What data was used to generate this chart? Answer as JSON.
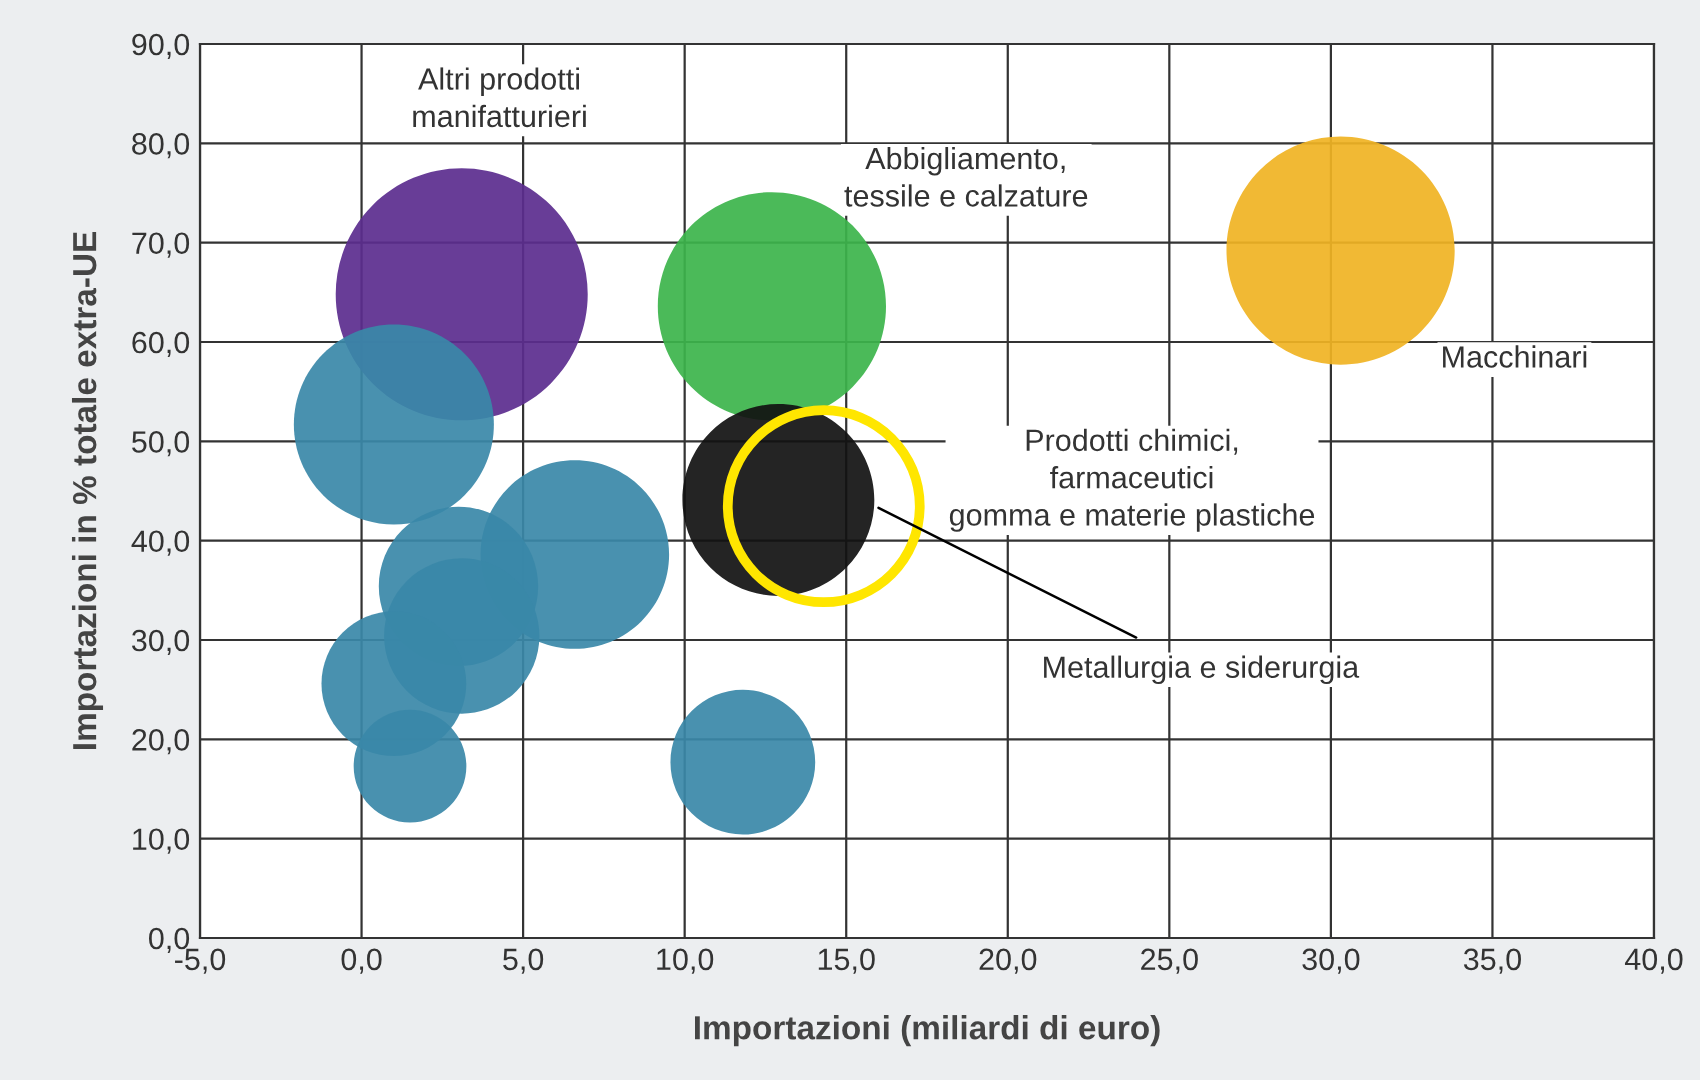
{
  "chart_data": {
    "type": "bubble",
    "xlabel": "Importazioni (miliardi di euro)",
    "ylabel": "Importazioni in % totale extra-UE",
    "x": [
      3.1,
      12.7,
      30.3,
      12.9,
      1.0,
      6.6,
      3.0,
      3.1,
      1.0,
      1.5,
      11.8
    ],
    "values": [
      64.8,
      63.6,
      69.2,
      44.1,
      51.7,
      38.6,
      35.4,
      30.4,
      25.6,
      17.3,
      17.7
    ],
    "sizes": [
      1,
      0.82,
      0.82,
      0.58,
      0.63,
      0.56,
      0.4,
      0.38,
      0.33,
      0.2,
      0.33
    ],
    "colors": [
      "#5b2d8e",
      "#3cb44b",
      "#f0b323",
      "#111111",
      "#3a88a8",
      "#3a88a8",
      "#3a88a8",
      "#3a88a8",
      "#3a88a8",
      "#3a88a8",
      "#3a88a8"
    ],
    "xlim": [
      -5,
      40
    ],
    "ylim": [
      0,
      90
    ],
    "xticks": [
      {
        "value": -5,
        "label": "-5,0"
      },
      {
        "value": 0,
        "label": "0,0"
      },
      {
        "value": 5,
        "label": "5,0"
      },
      {
        "value": 10,
        "label": "10,0"
      },
      {
        "value": 15,
        "label": "15,0"
      },
      {
        "value": 20,
        "label": "20,0"
      },
      {
        "value": 25,
        "label": "25,0"
      },
      {
        "value": 30,
        "label": "30,0"
      },
      {
        "value": 35,
        "label": "35,0"
      },
      {
        "value": 40,
        "label": "40,0"
      }
    ],
    "yticks": [
      {
        "value": 0,
        "label": "0,0"
      },
      {
        "value": 10,
        "label": "10,0"
      },
      {
        "value": 20,
        "label": "20,0"
      },
      {
        "value": 30,
        "label": "30,0"
      },
      {
        "value": 40,
        "label": "40,0"
      },
      {
        "value": 50,
        "label": "50,0"
      },
      {
        "value": 60,
        "label": "60,0"
      },
      {
        "value": 70,
        "label": "70,0"
      },
      {
        "value": 80,
        "label": "80,0"
      },
      {
        "value": 90,
        "label": "90,0"
      }
    ],
    "grid": true,
    "annotations": [
      "Altri prodotti\nmanifatturieri",
      "Abbigliamento,\ntessile e calzature",
      "Macchinari",
      "Prodotti chimici,\nfarmaceutici\ngomma e materie plastiche",
      {
        "text": "Metallurgia e siderurgia",
        "x": 16.0,
        "y": 43.3
      }
    ]
  }
}
